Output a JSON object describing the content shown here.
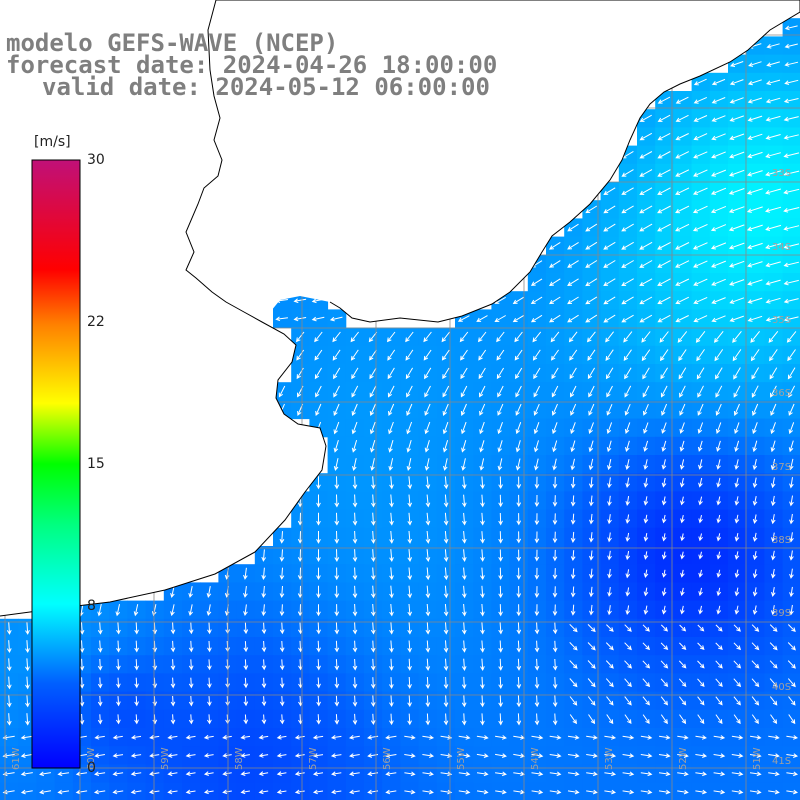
{
  "header": {
    "model": "modelo GEFS-WAVE (NCEP)",
    "forecast": "forecast date: 2024-04-26 18:00:00",
    "valid": "valid date: 2024-05-12 06:00:00"
  },
  "colorbar": {
    "unit": "[m/s]",
    "ticks": [
      "30",
      "22",
      "15",
      "8",
      "0"
    ],
    "tick_values": [
      30,
      22,
      15,
      8,
      0
    ],
    "range": [
      0,
      30
    ],
    "colors": [
      "#0000ff",
      "#00b4ff",
      "#00ffff",
      "#00ff00",
      "#ffff00",
      "#ff8000",
      "#ff0000",
      "#c01070"
    ]
  },
  "map": {
    "land_color": "#ffffff",
    "coast_color": "#000000",
    "grid_color": "#888888",
    "arrow_color": "#ffffff",
    "lat_labels": [
      "33S",
      "34S",
      "35S",
      "36S",
      "37S",
      "38S",
      "39S",
      "40S",
      "41S"
    ],
    "lon_labels": [
      "61W",
      "60W",
      "59W",
      "58W",
      "57W",
      "56W",
      "55W",
      "54W",
      "53W",
      "52W",
      "51W"
    ],
    "field_description": "wind speed shading with direction arrows over ocean"
  }
}
